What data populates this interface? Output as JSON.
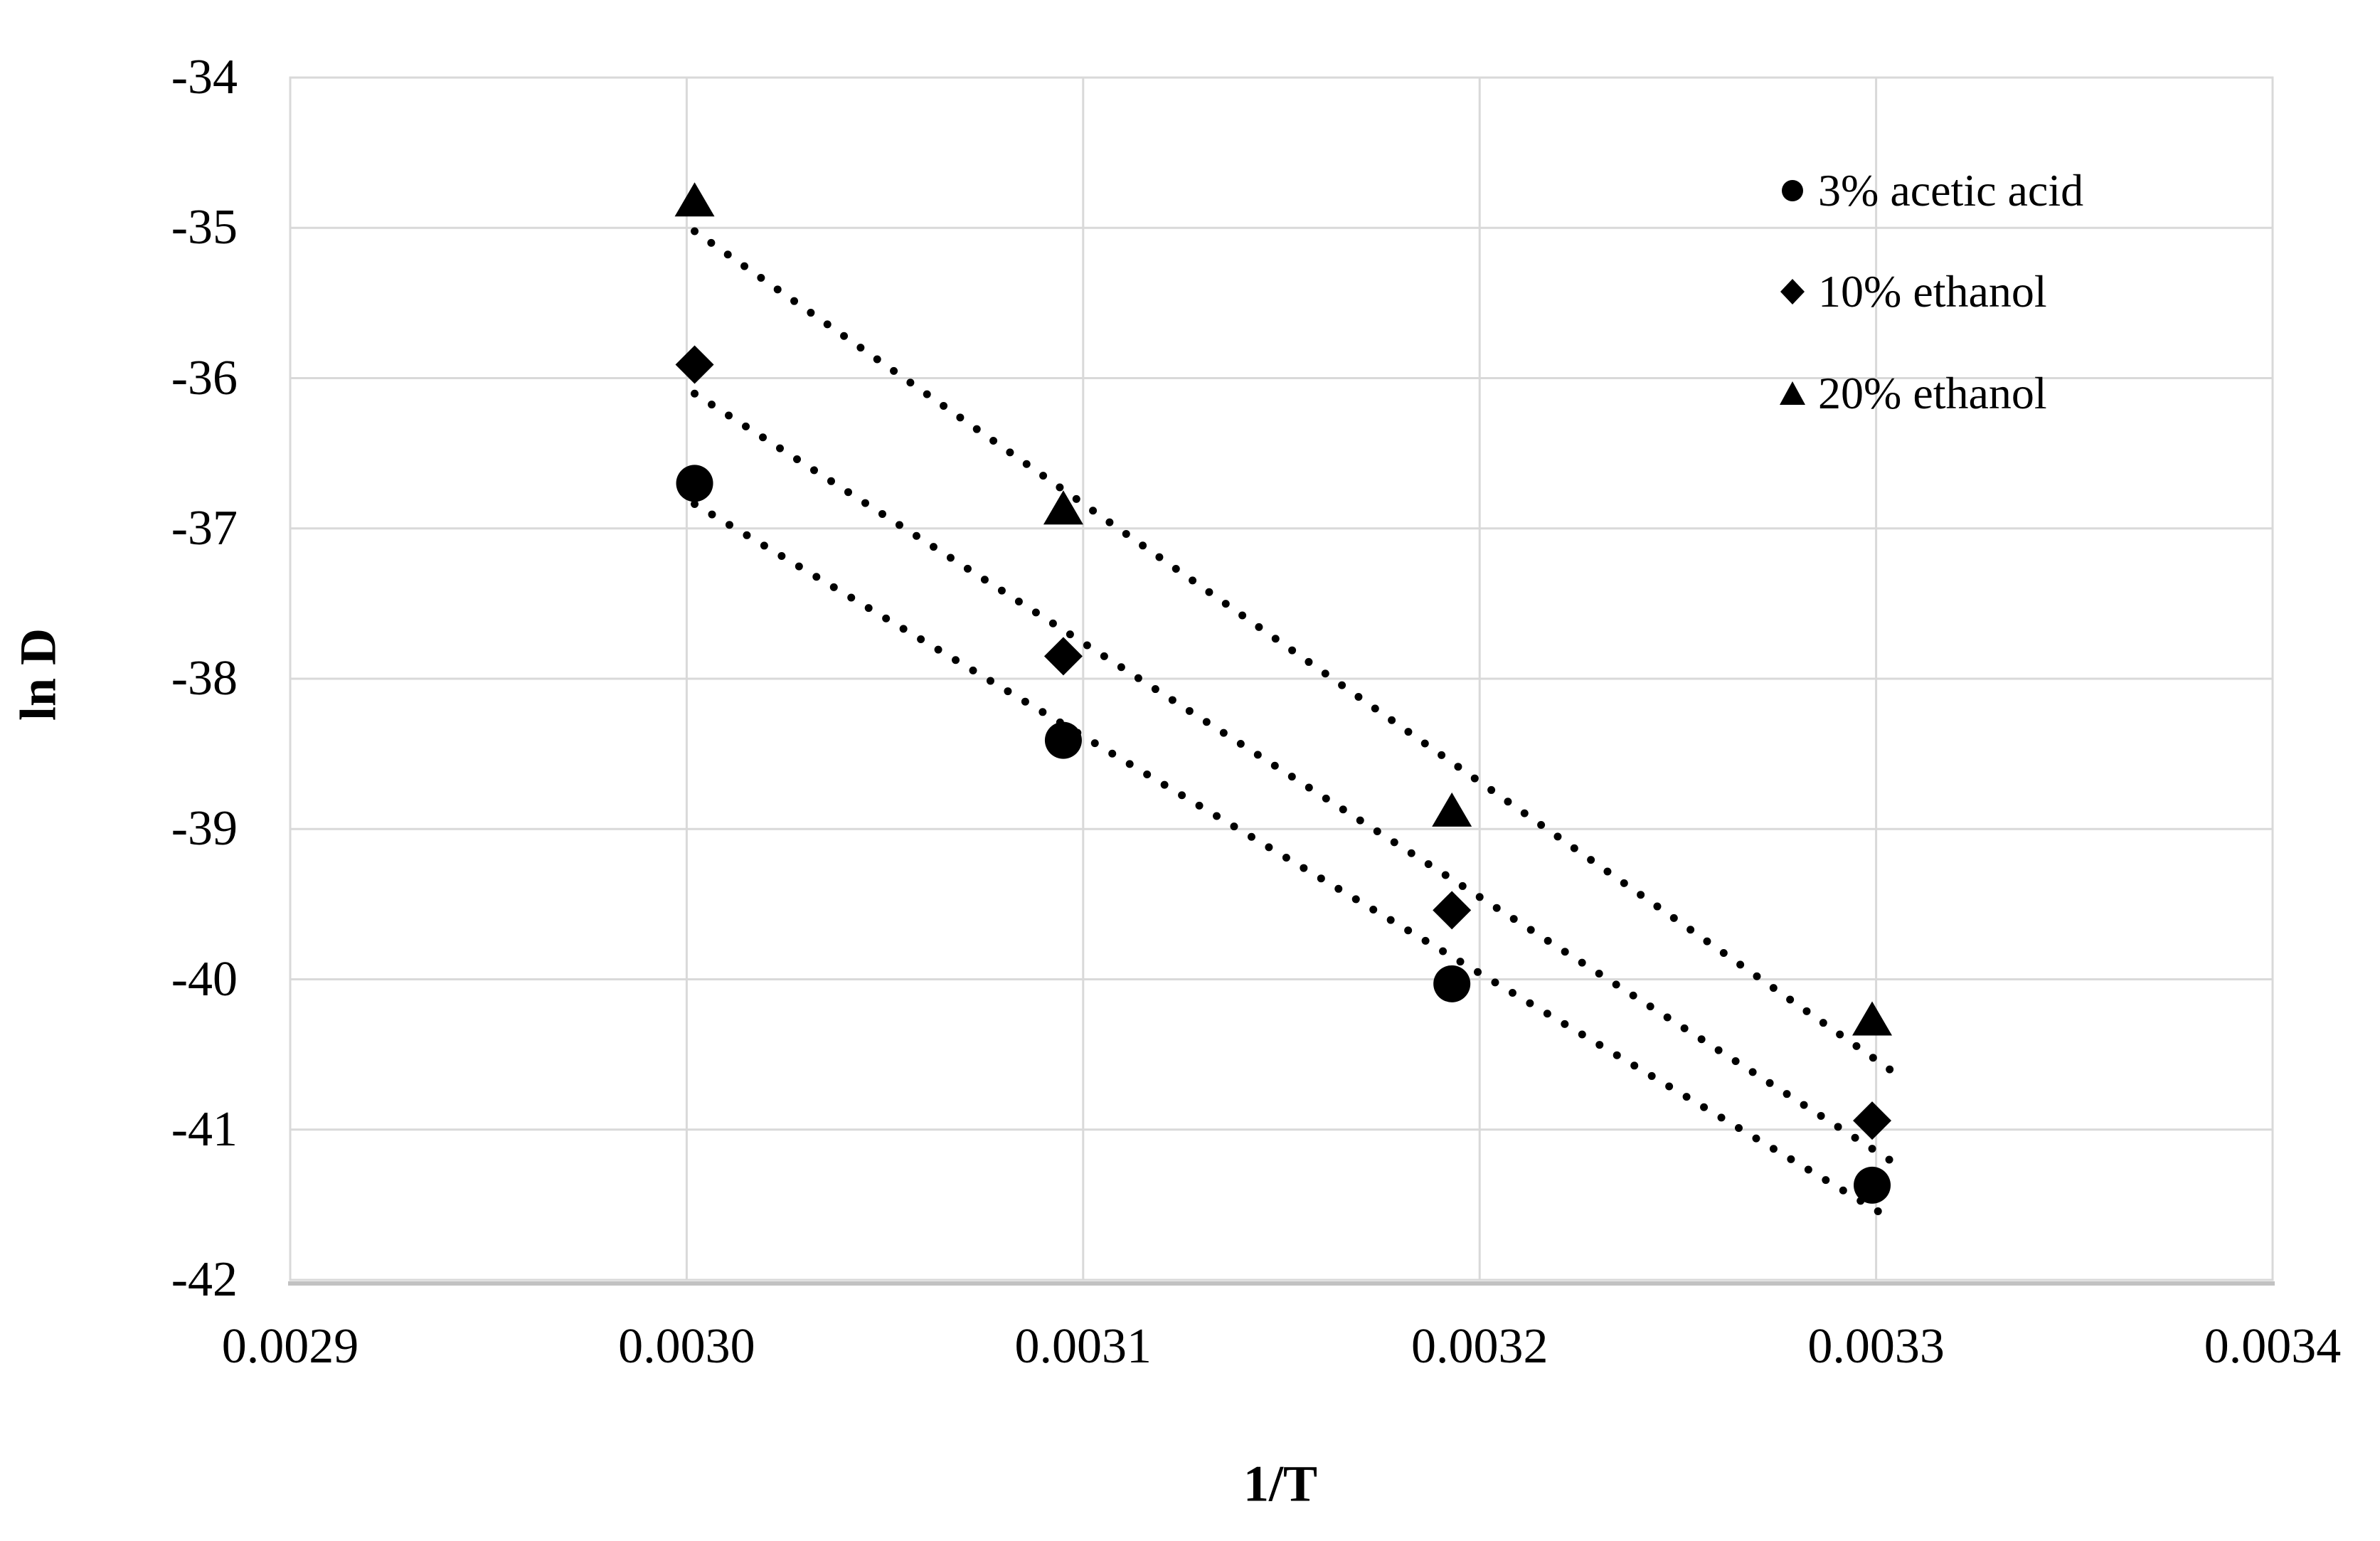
{
  "chart_data": {
    "type": "scatter",
    "title": "",
    "xlabel": "1/T",
    "ylabel": "ln D",
    "xlim": [
      0.0029,
      0.0034
    ],
    "ylim": [
      -42,
      -34
    ],
    "grid": true,
    "legend_position": "inside-upper-right",
    "x_ticks": [
      "0.0029",
      "0.0030",
      "0.0031",
      "0.0032",
      "0.0033",
      "0.0034"
    ],
    "x_tick_values": [
      0.0029,
      0.003,
      0.0031,
      0.0032,
      0.0033,
      0.0034
    ],
    "y_ticks": [
      "-34",
      "-35",
      "-36",
      "-37",
      "-38",
      "-39",
      "-40",
      "-41",
      "-42"
    ],
    "y_tick_values": [
      -34,
      -35,
      -36,
      -37,
      -38,
      -39,
      -40,
      -41,
      -42
    ],
    "x": [
      0.003002,
      0.003095,
      0.003193,
      0.003299
    ],
    "series": [
      {
        "name": "3% acetic acid",
        "marker": "circle",
        "values": [
          -36.7,
          -38.41,
          -40.03,
          -41.37
        ],
        "trendline": "linear-dotted"
      },
      {
        "name": "10% ethanol",
        "marker": "diamond",
        "values": [
          -35.91,
          -37.85,
          -39.54,
          -40.94
        ],
        "trendline": "linear-dotted"
      },
      {
        "name": "20% ethanol",
        "marker": "triangle",
        "values": [
          -34.82,
          -36.87,
          -38.88,
          -40.27
        ],
        "trendline": "linear-dotted"
      }
    ],
    "colors": {
      "marker": "#000000",
      "trendline": "#000000",
      "gridline": "#d9d9d9",
      "axis_line": "#c2c2c2",
      "text": "#000000",
      "background": "#ffffff"
    }
  }
}
